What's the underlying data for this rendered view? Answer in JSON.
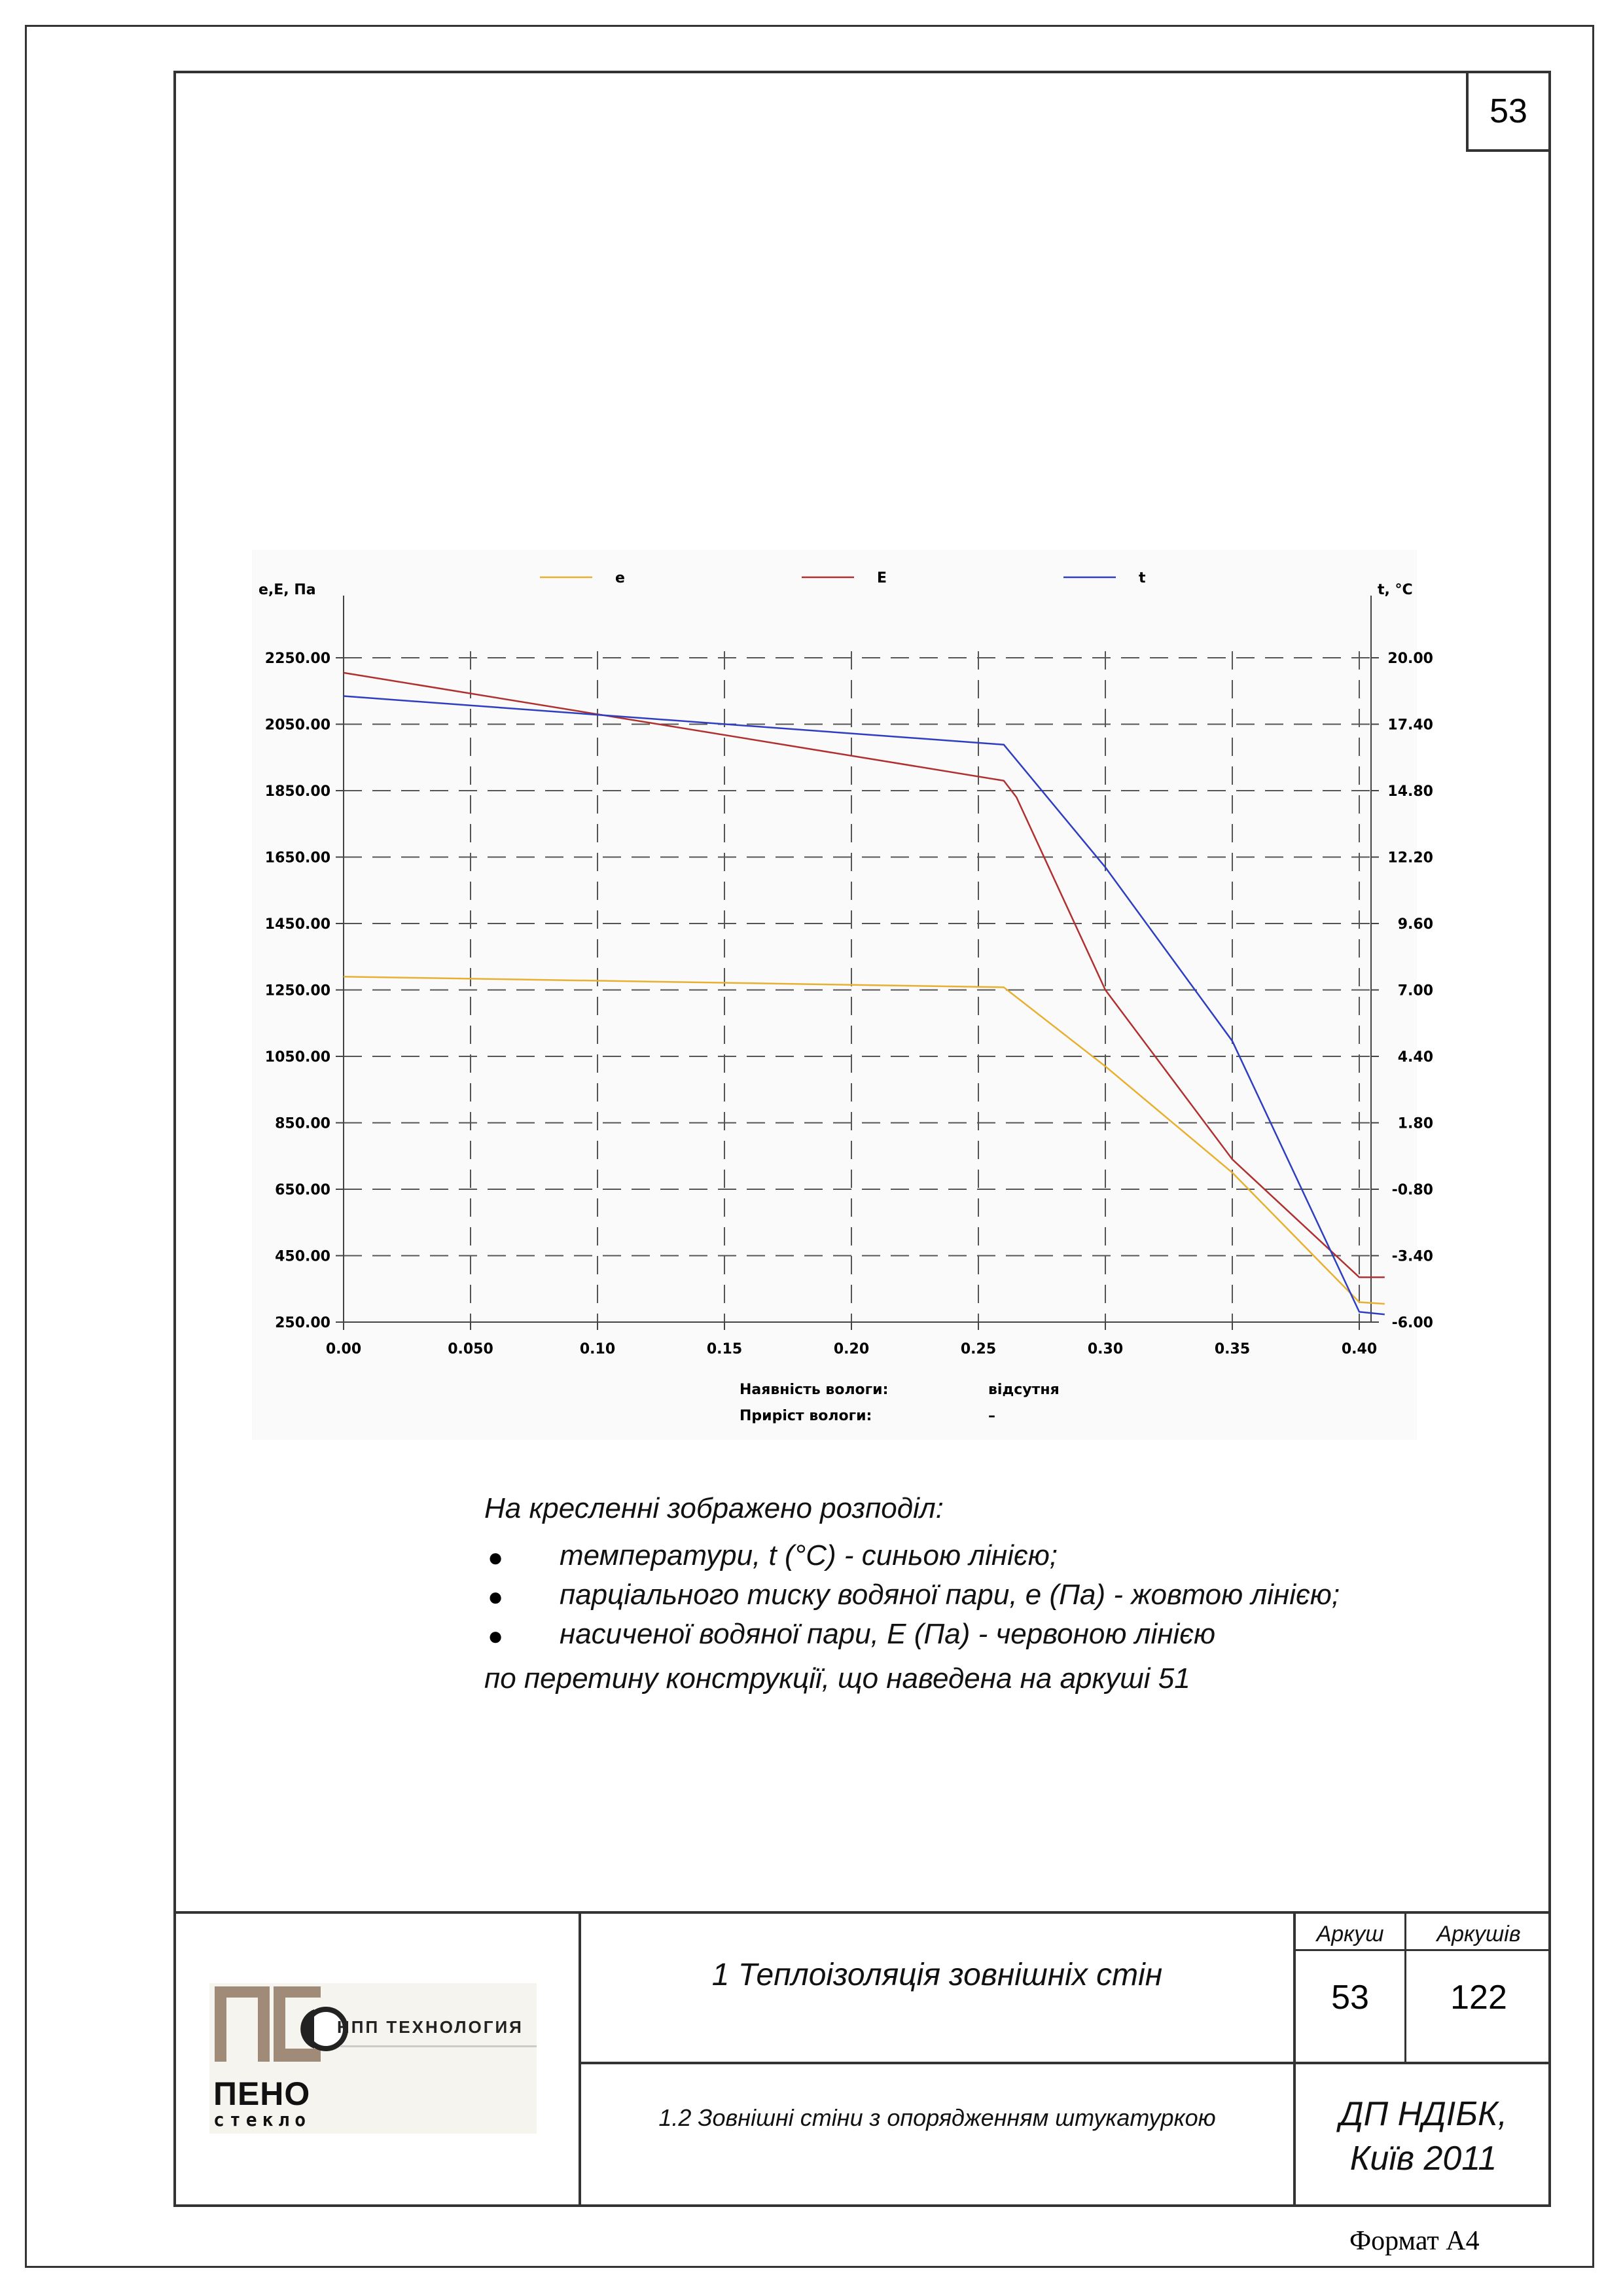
{
  "sheet_number_corner": "53",
  "chart_data": {
    "type": "line",
    "legend_placement": "top",
    "y_left_label": "e,E, Па",
    "y_right_label": "t, °C",
    "x_ticks": [
      "0.00",
      "0.050",
      "0.10",
      "0.15",
      "0.20",
      "0.25",
      "0.30",
      "0.35",
      "0.40"
    ],
    "x_tick_values": [
      0,
      0.05,
      0.1,
      0.15,
      0.2,
      0.25,
      0.3,
      0.35,
      0.4
    ],
    "y_left_ticks": [
      "2250.00",
      "2050.00",
      "1850.00",
      "1650.00",
      "1450.00",
      "1250.00",
      "1050.00",
      "850.00",
      "650.00",
      "450.00",
      "250.00"
    ],
    "y_left_tick_values": [
      2250,
      2050,
      1850,
      1650,
      1450,
      1250,
      1050,
      850,
      650,
      450,
      250
    ],
    "y_right_ticks": [
      "20.00",
      "17.40",
      "14.80",
      "12.20",
      "9.60",
      "7.00",
      "4.40",
      "1.80",
      "-0.80",
      "-3.40",
      "-6.00"
    ],
    "xlim": [
      0,
      0.42
    ],
    "ylim_left": [
      250,
      2250
    ],
    "ylim_right": [
      -6,
      20
    ],
    "grid": true,
    "series": [
      {
        "name": "e",
        "color": "#e8b030",
        "axis": "left",
        "x": [
          0.0,
          0.26,
          0.3,
          0.35,
          0.4,
          0.41
        ],
        "y": [
          1290,
          1258,
          1020,
          700,
          310,
          305
        ]
      },
      {
        "name": "E",
        "color": "#b03030",
        "axis": "left",
        "x": [
          0.0,
          0.26,
          0.265,
          0.3,
          0.35,
          0.4,
          0.41
        ],
        "y": [
          2205,
          1880,
          1830,
          1250,
          740,
          385,
          385
        ]
      },
      {
        "name": "t",
        "color": "#2e3ec0",
        "axis": "right",
        "x": [
          0.0,
          0.26,
          0.3,
          0.35,
          0.4,
          0.41
        ],
        "y": [
          18.5,
          16.6,
          11.8,
          5.0,
          -5.6,
          -5.7
        ]
      }
    ],
    "footer": [
      {
        "label": "Наявність вологи:",
        "value": "відсутня"
      },
      {
        "label": "Приріст вологи:",
        "value": "–"
      }
    ]
  },
  "caption": {
    "intro": "На кресленні зображено розподіл:",
    "items": [
      "температури, t (°C) - синьою лінією;",
      "парціального тиску водяної пари, e (Па) - жовтою лінією;",
      "насиченої водяної пари, E (Па) - червоною лінією"
    ],
    "outro": "по перетину конструкції, що наведена на аркуші 51"
  },
  "title_block": {
    "logo_top": "НПП ТЕХНОЛОГИЯ",
    "logo_mid": "ПЕНО",
    "logo_bottom": "стекло",
    "title": "1 Теплоізоляція зовнішніх стін",
    "subtitle": "1.2 Зовнішні стіни з опорядженням штукатуркою",
    "col_sheet": "Аркуш",
    "col_sheets": "Аркушів",
    "sheet": "53",
    "sheets": "122",
    "org": "ДП НДІБК,",
    "city_year": "Київ 2011"
  },
  "format_label": "Формат А4"
}
